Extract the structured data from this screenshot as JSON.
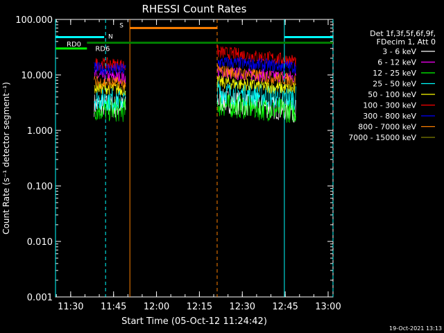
{
  "chart_data": {
    "type": "line",
    "title": "RHESSI Count Rates",
    "xlabel": "Start Time (05-Oct-12 11:24:42)",
    "ylabel": "Count Rate (s⁻¹ detector segment⁻¹)",
    "yscale": "log",
    "ylim": [
      0.001,
      100
    ],
    "y_tick_labels": [
      "0.001",
      "0.010",
      "0.100",
      "1.000",
      "10.000",
      "100.000"
    ],
    "xlim_min": [
      0,
      97
    ],
    "x_tick_labels": [
      "11:30",
      "11:45",
      "12:00",
      "12:15",
      "12:30",
      "12:45",
      "13:00"
    ],
    "grid": false,
    "legend": {
      "position": "right",
      "header": [
        "Det 1f,3f,5f,6f,9f,",
        "FDecim 1, Att 0"
      ],
      "entries": [
        {
          "label": "3 - 6 keV",
          "color": "#ffffff"
        },
        {
          "label": "6 - 12 keV",
          "color": "#ff00ff"
        },
        {
          "label": "12 - 25 keV",
          "color": "#00ff00"
        },
        {
          "label": "25 - 50 keV",
          "color": "#00ffff"
        },
        {
          "label": "50 - 100 keV",
          "color": "#ffff00"
        },
        {
          "label": "100 - 300 keV",
          "color": "#ff0000"
        },
        {
          "label": "300 - 800 keV",
          "color": "#0000ff"
        },
        {
          "label": "800 - 7000 keV",
          "color": "#ff8000"
        },
        {
          "label": "7000 - 15000 keV",
          "color": "#808000"
        }
      ]
    },
    "segments": [
      [
        13.5,
        24.5
      ],
      [
        56.5,
        84.0
      ]
    ],
    "series": [
      {
        "label_ref": 0,
        "seg": [
          [
            13.5,
            2.9,
            2.6
          ],
          [
            56.5,
            3.5,
            2.3
          ]
        ]
      },
      {
        "label_ref": 1,
        "seg": [
          [
            13.5,
            9.5,
            9.0
          ],
          [
            56.5,
            11.0,
            9.0
          ]
        ]
      },
      {
        "label_ref": 2,
        "seg": [
          [
            13.5,
            2.4,
            2.3
          ],
          [
            56.5,
            2.9,
            2.2
          ]
        ]
      },
      {
        "label_ref": 3,
        "seg": [
          [
            13.5,
            3.8,
            3.6
          ],
          [
            56.5,
            5.0,
            3.8
          ]
        ]
      },
      {
        "label_ref": 4,
        "seg": [
          [
            13.5,
            6.0,
            5.5
          ],
          [
            56.5,
            7.5,
            5.5
          ]
        ]
      },
      {
        "label_ref": 5,
        "seg": [
          [
            13.5,
            16.0,
            15.0
          ],
          [
            56.5,
            26.0,
            18.0
          ]
        ]
      },
      {
        "label_ref": 6,
        "seg": [
          [
            13.5,
            13.0,
            12.5
          ],
          [
            56.5,
            17.0,
            14.0
          ]
        ]
      },
      {
        "label_ref": 7,
        "seg": [
          [
            13.5,
            7.5,
            7.0
          ],
          [
            56.5,
            12.0,
            8.0
          ]
        ]
      }
    ],
    "attenuator_lines": [
      {
        "label": "RD0",
        "color": "#00ff00",
        "y": 30,
        "x": [
          0,
          11
        ]
      },
      {
        "label": "RD6",
        "color": "#008000",
        "y": 38,
        "x": [
          11,
          97
        ]
      }
    ],
    "state_lines": [
      {
        "label": "N",
        "color": "#00ffff",
        "y": 48,
        "x_ranges": [
          [
            0,
            17
          ],
          [
            80,
            97
          ]
        ]
      },
      {
        "label": "S",
        "color": "#ff8000",
        "y": 70,
        "x_ranges": [
          [
            26,
            56.5
          ]
        ]
      }
    ],
    "vertical_lines": [
      {
        "x": 0,
        "color": "#00ffff",
        "dashed": false
      },
      {
        "x": 17.5,
        "color": "#00ffff",
        "dashed": true
      },
      {
        "x": 26,
        "color": "#ff8000",
        "dashed": false
      },
      {
        "x": 56.5,
        "color": "#ff8000",
        "dashed": true
      },
      {
        "x": 80,
        "color": "#00ffff",
        "dashed": false
      },
      {
        "x": 97,
        "color": "#00ffff",
        "dashed": true
      }
    ],
    "timestamp": "19-Oct-2021 13:13"
  }
}
